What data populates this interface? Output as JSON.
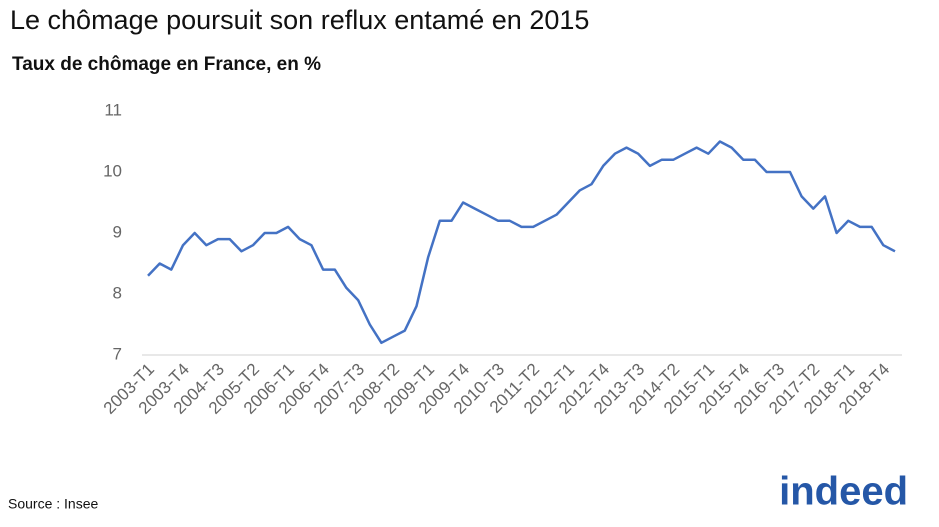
{
  "chart_data": {
    "type": "line",
    "title": "Le chômage poursuit son reflux entamé en 2015",
    "subtitle": "Taux de chômage en France, en %",
    "source": "Source : Insee",
    "logo": "indeed",
    "categories": [
      "2003-T1",
      null,
      null,
      "2003-T4",
      null,
      null,
      "2004-T3",
      null,
      null,
      "2005-T2",
      null,
      null,
      "2006-T1",
      null,
      null,
      "2006-T4",
      null,
      null,
      "2007-T3",
      null,
      null,
      "2008-T2",
      null,
      null,
      "2009-T1",
      null,
      null,
      "2009-T4",
      null,
      null,
      "2010-T3",
      null,
      null,
      "2011-T2",
      null,
      null,
      "2012-T1",
      null,
      null,
      "2012-T4",
      null,
      null,
      "2013-T3",
      null,
      null,
      "2014-T2",
      null,
      null,
      "2015-T1",
      null,
      null,
      "2015-T4",
      null,
      null,
      "2016-T3",
      null,
      null,
      "2017-T2",
      null,
      null,
      "2018-T1",
      null,
      null,
      "2018-T4",
      null
    ],
    "values": [
      8.3,
      8.5,
      8.4,
      8.8,
      9.0,
      8.8,
      8.9,
      8.9,
      8.7,
      8.8,
      9.0,
      9.0,
      9.1,
      8.9,
      8.8,
      8.4,
      8.4,
      8.1,
      7.9,
      7.5,
      7.2,
      7.3,
      7.4,
      7.8,
      8.6,
      9.2,
      9.2,
      9.5,
      9.4,
      9.3,
      9.2,
      9.2,
      9.1,
      9.1,
      9.2,
      9.3,
      9.5,
      9.7,
      9.8,
      10.1,
      10.3,
      10.4,
      10.3,
      10.1,
      10.2,
      10.2,
      10.3,
      10.4,
      10.3,
      10.5,
      10.4,
      10.2,
      10.2,
      10.0,
      10.0,
      10.0,
      9.6,
      9.4,
      9.6,
      9.0,
      9.2,
      9.1,
      9.1,
      8.8,
      8.7
    ],
    "color": "#4472c4",
    "ylim": [
      7,
      11
    ],
    "yticks": [
      7,
      8,
      9,
      10,
      11
    ],
    "grid": false
  }
}
